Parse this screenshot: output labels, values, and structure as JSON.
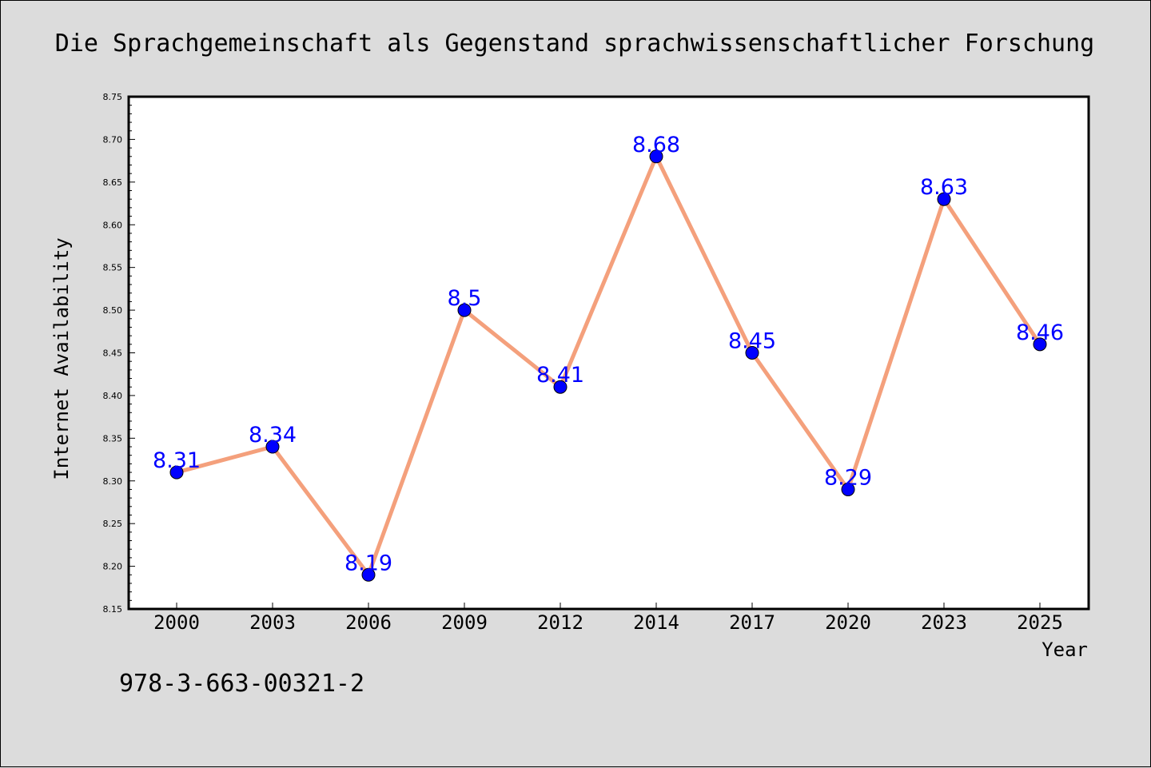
{
  "chart_data": {
    "type": "line",
    "title": "Die Sprachgemeinschaft als Gegenstand sprachwissenschaftlicher Forschung",
    "xlabel": "Year",
    "ylabel": "Internet Availability",
    "categories": [
      "2000",
      "2003",
      "2006",
      "2009",
      "2012",
      "2014",
      "2017",
      "2020",
      "2023",
      "2025"
    ],
    "series": [
      {
        "values": [
          8.31,
          8.34,
          8.19,
          8.5,
          8.41,
          8.68,
          8.45,
          8.29,
          8.63,
          8.46
        ],
        "data_labels": [
          "8.31",
          "8.34",
          "8.19",
          "8.5",
          "8.41",
          "8.68",
          "8.45",
          "8.29",
          "8.63",
          "8.46"
        ],
        "line_color": "#f4a07c",
        "marker_color": "#0000ff"
      }
    ],
    "ylim": [
      8.15,
      8.75
    ],
    "yticks": [
      "8.15",
      "8.20",
      "8.25",
      "8.30",
      "8.35",
      "8.40",
      "8.45",
      "8.50",
      "8.55",
      "8.60",
      "8.65",
      "8.70",
      "8.75"
    ],
    "grid": false,
    "legend": "none"
  },
  "footer_text": "978-3-663-00321-2",
  "colors": {
    "background": "#dcdcdc",
    "plot_background": "#ffffff",
    "line": "#f4a07c",
    "marker": "#0000ff",
    "data_label": "#0000ff"
  }
}
